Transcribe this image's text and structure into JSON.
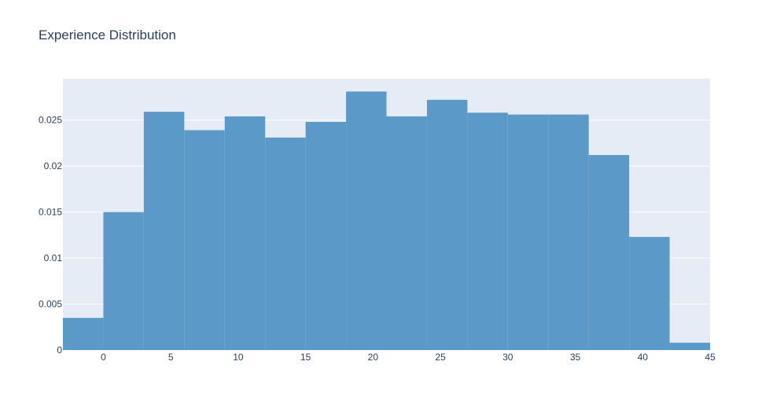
{
  "chart_data": {
    "type": "bar",
    "title": "Experience Distribution",
    "xlabel": "",
    "ylabel": "",
    "xlim": [
      -3,
      45
    ],
    "ylim": [
      0,
      0.0295
    ],
    "xticks": [
      0,
      5,
      10,
      15,
      20,
      25,
      30,
      35,
      40,
      45
    ],
    "xtick_labels": [
      "0",
      "5",
      "10",
      "15",
      "20",
      "25",
      "30",
      "35",
      "40",
      "45"
    ],
    "yticks": [
      0,
      0.005,
      0.01,
      0.015,
      0.02,
      0.025
    ],
    "ytick_labels": [
      "0",
      "0.005",
      "0.01",
      "0.015",
      "0.02",
      "0.025"
    ],
    "grid": true,
    "bar_color": "#5b9ac8",
    "plot_background": "#e5ecf6",
    "grid_color": "#ffffff",
    "bins": [
      {
        "x0": -3,
        "x1": 0,
        "value": 0.0035
      },
      {
        "x0": 0,
        "x1": 3,
        "value": 0.015
      },
      {
        "x0": 3,
        "x1": 6,
        "value": 0.0259
      },
      {
        "x0": 6,
        "x1": 9,
        "value": 0.0239
      },
      {
        "x0": 9,
        "x1": 12,
        "value": 0.0254
      },
      {
        "x0": 12,
        "x1": 15,
        "value": 0.0231
      },
      {
        "x0": 15,
        "x1": 18,
        "value": 0.0248
      },
      {
        "x0": 18,
        "x1": 21,
        "value": 0.0281
      },
      {
        "x0": 21,
        "x1": 24,
        "value": 0.0254
      },
      {
        "x0": 24,
        "x1": 27,
        "value": 0.0272
      },
      {
        "x0": 27,
        "x1": 30,
        "value": 0.0258
      },
      {
        "x0": 30,
        "x1": 33,
        "value": 0.0256
      },
      {
        "x0": 33,
        "x1": 36,
        "value": 0.0256
      },
      {
        "x0": 36,
        "x1": 39,
        "value": 0.0212
      },
      {
        "x0": 39,
        "x1": 42,
        "value": 0.0123
      },
      {
        "x0": 42,
        "x1": 45,
        "value": 0.0008
      }
    ]
  }
}
